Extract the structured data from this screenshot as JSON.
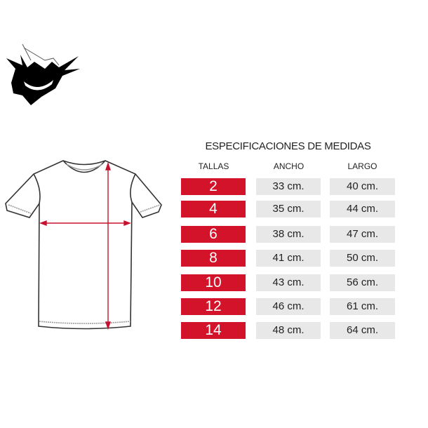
{
  "title": "ESPECIFICACIONES DE MEDIDAS",
  "headers": {
    "tallas": "TALLAS",
    "ancho": "ANCHO",
    "largo": "LARGO"
  },
  "accent_color": "#d3132a",
  "logo": "ghost-face-logo",
  "rows": [
    {
      "talla": "2",
      "ancho": "33 cm.",
      "largo": "40 cm."
    },
    {
      "talla": "4",
      "ancho": "35 cm.",
      "largo": "44 cm."
    },
    {
      "talla": "6",
      "ancho": "38 cm.",
      "largo": "47 cm."
    },
    {
      "talla": "8",
      "ancho": "41 cm.",
      "largo": "50 cm."
    },
    {
      "talla": "10",
      "ancho": "43 cm.",
      "largo": "56 cm."
    },
    {
      "talla": "12",
      "ancho": "46 cm.",
      "largo": "61 cm."
    },
    {
      "talla": "14",
      "ancho": "48 cm.",
      "largo": "64 cm."
    }
  ]
}
